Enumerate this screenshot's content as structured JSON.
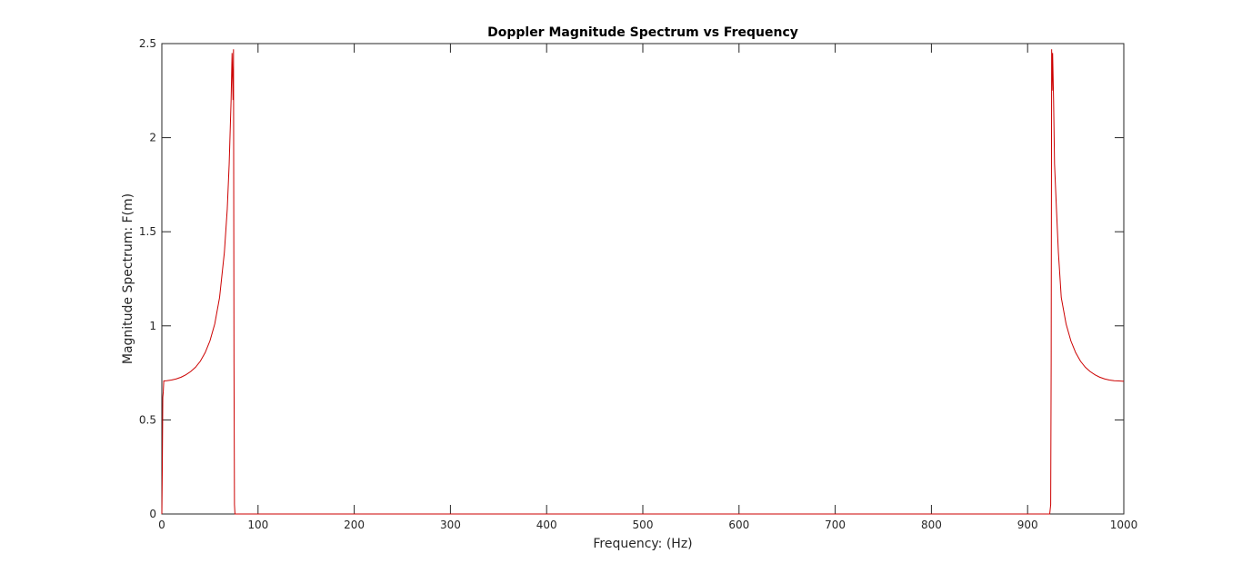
{
  "chart_data": {
    "type": "line",
    "title": "Doppler Magnitude Spectrum vs Frequency",
    "xlabel": "Frequency: (Hz)",
    "ylabel": "Magnitude Spectrum: F(m)",
    "xlim": [
      0,
      1000
    ],
    "ylim": [
      0,
      2.5
    ],
    "xticks": [
      0,
      100,
      200,
      300,
      400,
      500,
      600,
      700,
      800,
      900,
      1000
    ],
    "xtick_labels": [
      "0",
      "100",
      "200",
      "300",
      "400",
      "500",
      "600",
      "700",
      "800",
      "900",
      "1000"
    ],
    "yticks": [
      0,
      0.5,
      1,
      1.5,
      2,
      2.5
    ],
    "ytick_labels": [
      "0",
      "0.5",
      "1",
      "1.5",
      "2",
      "2.5"
    ],
    "grid": false,
    "series": [
      {
        "color": "#cc0000",
        "x": [
          0,
          0.5,
          1,
          1.5,
          2,
          5,
          10,
          15,
          20,
          25,
          30,
          35,
          40,
          45,
          50,
          55,
          60,
          65,
          68,
          70,
          72,
          73,
          74,
          74.5,
          75,
          75.5,
          76,
          77,
          100,
          200,
          300,
          400,
          500,
          600,
          700,
          800,
          900,
          923,
          924,
          924.5,
          925,
          925.5,
          926,
          927,
          928,
          930,
          932,
          935,
          940,
          945,
          950,
          955,
          960,
          965,
          970,
          975,
          980,
          985,
          990,
          995,
          1000
        ],
        "y": [
          0,
          0.25,
          0.62,
          0.65,
          0.707,
          0.708,
          0.712,
          0.718,
          0.727,
          0.74,
          0.757,
          0.78,
          0.812,
          0.857,
          0.92,
          1.01,
          1.15,
          1.39,
          1.62,
          1.86,
          2.2,
          2.45,
          2.2,
          2.47,
          0.8,
          0.05,
          0,
          0,
          0,
          0,
          0,
          0,
          0,
          0,
          0,
          0,
          0,
          0,
          0.05,
          0.8,
          2.47,
          2.25,
          2.45,
          2.2,
          1.86,
          1.62,
          1.39,
          1.15,
          1.01,
          0.92,
          0.857,
          0.812,
          0.78,
          0.757,
          0.74,
          0.727,
          0.718,
          0.712,
          0.708,
          0.707,
          0.705
        ]
      }
    ]
  }
}
